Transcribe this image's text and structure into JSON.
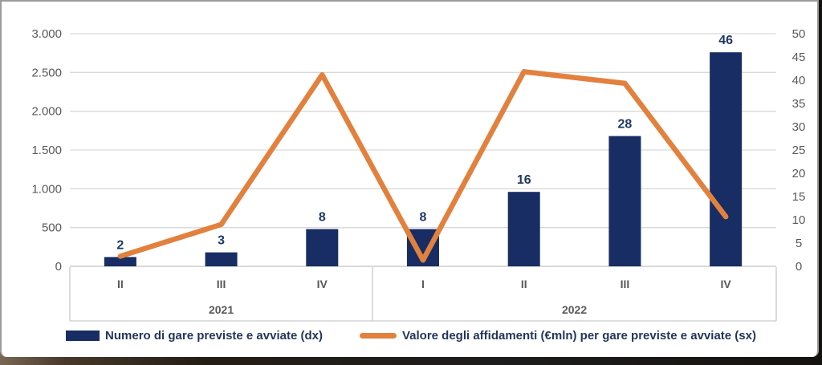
{
  "colors": {
    "bar": "#172d63",
    "line": "#e2813e",
    "grid": "#d9d9d9",
    "axis_box": "#c9c9c9",
    "axis_text": "#595959",
    "data_label": "#1f3864",
    "legend_text": "#25355a"
  },
  "chart_data": {
    "type": "combo-bar-line",
    "categories": [
      "II",
      "III",
      "IV",
      "I",
      "II",
      "III",
      "IV"
    ],
    "category_groups": [
      {
        "label": "2021",
        "span": 3
      },
      {
        "label": "2022",
        "span": 4
      }
    ],
    "series": [
      {
        "name": "Numero di gare previste e avviate (dx)",
        "type": "bar",
        "axis": "right",
        "values": [
          2,
          3,
          8,
          8,
          16,
          28,
          46
        ],
        "data_labels": [
          "2",
          "3",
          "8",
          "8",
          "16",
          "28",
          "46"
        ]
      },
      {
        "name": "Valore degli affidamenti (€mln) per gare previste e avviate (sx)",
        "type": "line",
        "axis": "left",
        "values": [
          130,
          540,
          2470,
          80,
          2510,
          2360,
          640
        ]
      }
    ],
    "left_axis": {
      "min": 0,
      "max": 3000,
      "step": 500,
      "tick_labels": [
        "0",
        "500",
        "1.000",
        "1.500",
        "2.000",
        "2.500",
        "3.000"
      ]
    },
    "right_axis": {
      "min": 0,
      "max": 50,
      "step": 5,
      "tick_labels": [
        "0",
        "5",
        "10",
        "15",
        "20",
        "25",
        "30",
        "35",
        "40",
        "45",
        "50"
      ]
    },
    "grid": true,
    "legend_position": "bottom",
    "title": ""
  },
  "legend": {
    "items": [
      {
        "label": "Numero di gare previste e avviate (dx)",
        "swatch": "bar"
      },
      {
        "label": "Valore degli affidamenti (€mln) per gare previste e avviate (sx)",
        "swatch": "line"
      }
    ]
  }
}
